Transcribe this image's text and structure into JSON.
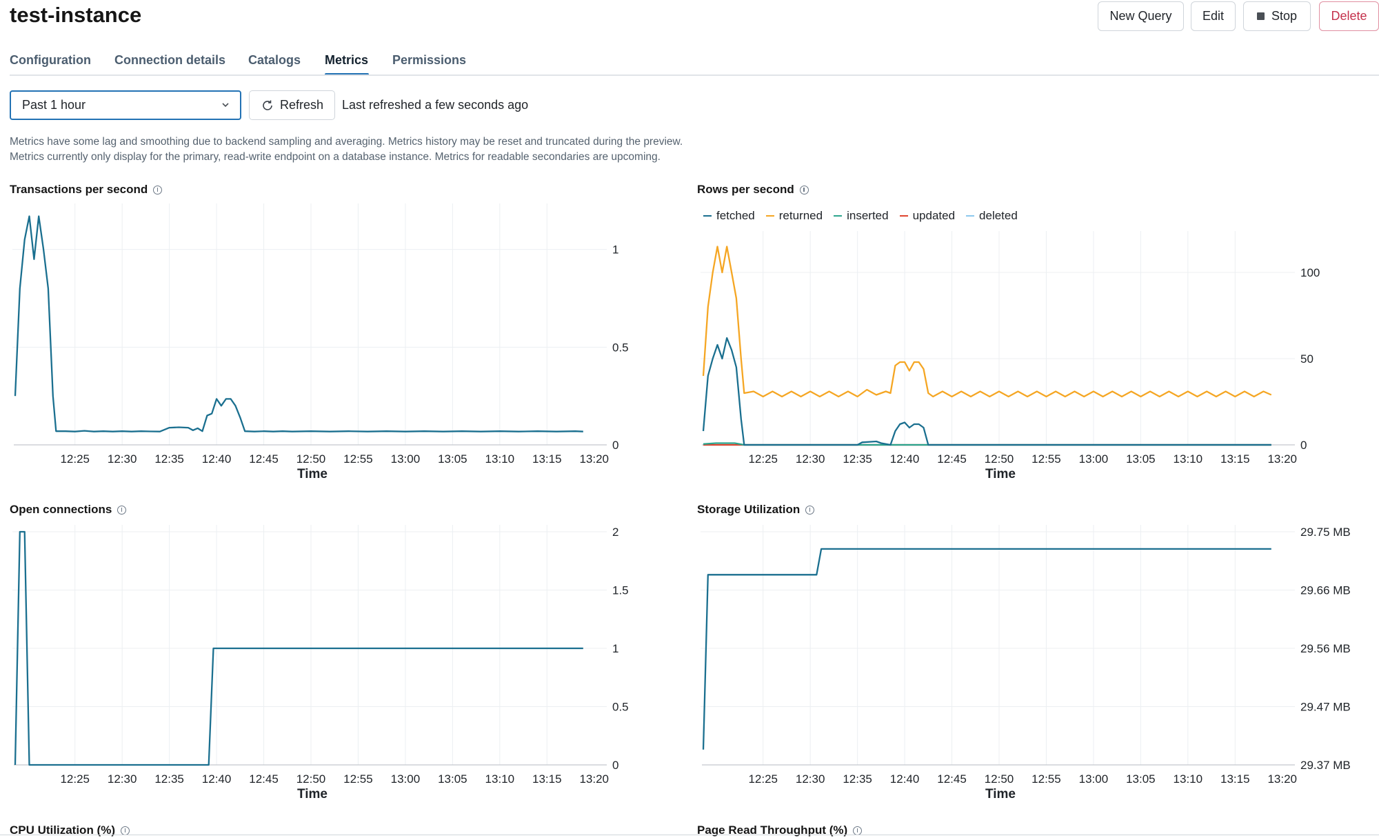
{
  "instance_title": "test-instance",
  "actions": {
    "new_query": "New Query",
    "edit": "Edit",
    "stop": "Stop",
    "delete": "Delete"
  },
  "tabs": [
    {
      "label": "Configuration",
      "active": false
    },
    {
      "label": "Connection details",
      "active": false
    },
    {
      "label": "Catalogs",
      "active": false
    },
    {
      "label": "Metrics",
      "active": true
    },
    {
      "label": "Permissions",
      "active": false
    }
  ],
  "time_range": {
    "selected": "Past 1 hour"
  },
  "refresh": {
    "label": "Refresh",
    "status": "Last refreshed a few seconds ago"
  },
  "notices": [
    "Metrics have some lag and smoothing due to backend sampling and averaging. Metrics history may be reset and truncated during the preview.",
    "Metrics currently only display for the primary, read-write endpoint on a database instance. Metrics for readable secondaries are upcoming."
  ],
  "colors": {
    "accent": "#2272b4",
    "fetched": "#1a6f8f",
    "returned": "#f5a623",
    "inserted": "#2ca58d",
    "updated": "#e0442e",
    "deleted": "#8cc8ee",
    "danger": "#c4314b"
  },
  "chart_data": [
    {
      "id": "tps",
      "type": "line",
      "title": "Transactions per second",
      "xlabel": "Time",
      "ylabel": "",
      "x_ticks": [
        "12:25",
        "12:30",
        "12:35",
        "12:40",
        "12:45",
        "12:50",
        "12:55",
        "13:00",
        "13:05",
        "13:10",
        "13:15",
        "13:20"
      ],
      "y_ticks": [
        "0",
        "0.5",
        "1"
      ],
      "ylim": [
        0,
        1.2
      ],
      "grid": true,
      "series": [
        {
          "color": "#1a6f8f",
          "points": [
            [
              "12:18:40",
              0.25
            ],
            [
              "12:19:10",
              0.8
            ],
            [
              "12:19:40",
              1.05
            ],
            [
              "12:20:10",
              1.17
            ],
            [
              "12:20:40",
              0.95
            ],
            [
              "12:21:10",
              1.17
            ],
            [
              "12:21:40",
              1.0
            ],
            [
              "12:22:10",
              0.8
            ],
            [
              "12:22:40",
              0.25
            ],
            [
              "12:23:00",
              0.07
            ],
            [
              "12:24:00",
              0.07
            ],
            [
              "12:25:00",
              0.068
            ],
            [
              "12:26:00",
              0.072
            ],
            [
              "12:27:00",
              0.068
            ],
            [
              "12:28:00",
              0.07
            ],
            [
              "12:29:00",
              0.068
            ],
            [
              "12:30:00",
              0.07
            ],
            [
              "12:31:00",
              0.068
            ],
            [
              "12:32:00",
              0.07
            ],
            [
              "12:33:00",
              0.069
            ],
            [
              "12:34:00",
              0.068
            ],
            [
              "12:35:00",
              0.088
            ],
            [
              "12:36:00",
              0.09
            ],
            [
              "12:37:00",
              0.088
            ],
            [
              "12:37:30",
              0.075
            ],
            [
              "12:38:00",
              0.085
            ],
            [
              "12:38:30",
              0.07
            ],
            [
              "12:39:00",
              0.15
            ],
            [
              "12:39:30",
              0.16
            ],
            [
              "12:40:00",
              0.235
            ],
            [
              "12:40:30",
              0.2
            ],
            [
              "12:41:00",
              0.235
            ],
            [
              "12:41:30",
              0.235
            ],
            [
              "12:42:00",
              0.2
            ],
            [
              "12:42:30",
              0.14
            ],
            [
              "12:43:00",
              0.07
            ],
            [
              "12:44:00",
              0.068
            ],
            [
              "12:45:00",
              0.07
            ],
            [
              "12:46:00",
              0.068
            ],
            [
              "12:47:00",
              0.07
            ],
            [
              "12:48:00",
              0.068
            ],
            [
              "12:50:00",
              0.07
            ],
            [
              "12:52:00",
              0.068
            ],
            [
              "12:54:00",
              0.07
            ],
            [
              "12:56:00",
              0.068
            ],
            [
              "12:58:00",
              0.07
            ],
            [
              "13:00:00",
              0.068
            ],
            [
              "13:02:00",
              0.07
            ],
            [
              "13:04:00",
              0.068
            ],
            [
              "13:06:00",
              0.07
            ],
            [
              "13:08:00",
              0.068
            ],
            [
              "13:10:00",
              0.07
            ],
            [
              "13:12:00",
              0.068
            ],
            [
              "13:14:00",
              0.07
            ],
            [
              "13:16:00",
              0.068
            ],
            [
              "13:18:00",
              0.07
            ],
            [
              "13:18:50",
              0.068
            ]
          ]
        }
      ]
    },
    {
      "id": "rows",
      "type": "line",
      "title": "Rows per second",
      "xlabel": "Time",
      "ylabel": "",
      "legend_position": "top-left",
      "x_ticks": [
        "12:25",
        "12:30",
        "12:35",
        "12:40",
        "12:45",
        "12:50",
        "12:55",
        "13:00",
        "13:05",
        "13:10",
        "13:15",
        "13:20"
      ],
      "y_ticks": [
        "0",
        "50",
        "100"
      ],
      "ylim": [
        0,
        120
      ],
      "grid": true,
      "series": [
        {
          "name": "fetched",
          "color": "#1a6f8f",
          "points": [
            [
              "12:18:40",
              8
            ],
            [
              "12:19:10",
              40
            ],
            [
              "12:19:40",
              50
            ],
            [
              "12:20:10",
              58
            ],
            [
              "12:20:40",
              50
            ],
            [
              "12:21:10",
              62
            ],
            [
              "12:21:40",
              55
            ],
            [
              "12:22:10",
              45
            ],
            [
              "12:22:40",
              15
            ],
            [
              "12:23:00",
              0
            ],
            [
              "12:35:00",
              0
            ],
            [
              "12:35:30",
              1.5
            ],
            [
              "12:37:00",
              2
            ],
            [
              "12:37:30",
              1
            ],
            [
              "12:38:00",
              0.5
            ],
            [
              "12:38:30",
              0
            ],
            [
              "12:39:00",
              8
            ],
            [
              "12:39:30",
              12
            ],
            [
              "12:40:00",
              13
            ],
            [
              "12:40:30",
              10
            ],
            [
              "12:41:00",
              12
            ],
            [
              "12:41:30",
              12
            ],
            [
              "12:42:00",
              10
            ],
            [
              "12:42:30",
              0
            ],
            [
              "13:18:50",
              0
            ]
          ]
        },
        {
          "name": "returned",
          "color": "#f5a623",
          "points": [
            [
              "12:18:40",
              40
            ],
            [
              "12:19:10",
              80
            ],
            [
              "12:19:40",
              100
            ],
            [
              "12:20:10",
              115
            ],
            [
              "12:20:40",
              100
            ],
            [
              "12:21:10",
              115
            ],
            [
              "12:21:40",
              100
            ],
            [
              "12:22:10",
              85
            ],
            [
              "12:22:40",
              50
            ],
            [
              "12:23:00",
              30
            ],
            [
              "12:24:00",
              31
            ],
            [
              "12:25:00",
              28
            ],
            [
              "12:26:00",
              31
            ],
            [
              "12:27:00",
              28
            ],
            [
              "12:28:00",
              31
            ],
            [
              "12:29:00",
              28
            ],
            [
              "12:30:00",
              31
            ],
            [
              "12:31:00",
              28
            ],
            [
              "12:32:00",
              31
            ],
            [
              "12:33:00",
              28
            ],
            [
              "12:34:00",
              31
            ],
            [
              "12:35:00",
              28
            ],
            [
              "12:36:00",
              32
            ],
            [
              "12:37:00",
              29
            ],
            [
              "12:38:00",
              31
            ],
            [
              "12:38:30",
              30
            ],
            [
              "12:39:00",
              46
            ],
            [
              "12:39:30",
              48
            ],
            [
              "12:40:00",
              48
            ],
            [
              "12:40:30",
              43
            ],
            [
              "12:41:00",
              48
            ],
            [
              "12:41:30",
              48
            ],
            [
              "12:42:00",
              44
            ],
            [
              "12:42:30",
              30
            ],
            [
              "12:43:00",
              28
            ],
            [
              "12:44:00",
              31
            ],
            [
              "12:45:00",
              28
            ],
            [
              "12:46:00",
              31
            ],
            [
              "12:47:00",
              28
            ],
            [
              "12:48:00",
              31
            ],
            [
              "12:49:00",
              28
            ],
            [
              "12:50:00",
              31
            ],
            [
              "12:51:00",
              28
            ],
            [
              "12:52:00",
              31
            ],
            [
              "12:53:00",
              28
            ],
            [
              "12:54:00",
              31
            ],
            [
              "12:55:00",
              28
            ],
            [
              "12:56:00",
              31
            ],
            [
              "12:57:00",
              28
            ],
            [
              "12:58:00",
              31
            ],
            [
              "12:59:00",
              28
            ],
            [
              "13:00:00",
              31
            ],
            [
              "13:01:00",
              28
            ],
            [
              "13:02:00",
              31
            ],
            [
              "13:03:00",
              28
            ],
            [
              "13:04:00",
              31
            ],
            [
              "13:05:00",
              28
            ],
            [
              "13:06:00",
              31
            ],
            [
              "13:07:00",
              28
            ],
            [
              "13:08:00",
              31
            ],
            [
              "13:09:00",
              28
            ],
            [
              "13:10:00",
              31
            ],
            [
              "13:11:00",
              28
            ],
            [
              "13:12:00",
              31
            ],
            [
              "13:13:00",
              28
            ],
            [
              "13:14:00",
              31
            ],
            [
              "13:15:00",
              28
            ],
            [
              "13:16:00",
              31
            ],
            [
              "13:17:00",
              28
            ],
            [
              "13:18:00",
              31
            ],
            [
              "13:18:50",
              29
            ]
          ]
        },
        {
          "name": "inserted",
          "color": "#2ca58d",
          "points": [
            [
              "12:18:40",
              0.5
            ],
            [
              "12:20:00",
              1
            ],
            [
              "12:22:00",
              1
            ],
            [
              "12:23:00",
              0
            ],
            [
              "13:18:50",
              0
            ]
          ]
        },
        {
          "name": "updated",
          "color": "#e0442e",
          "points": [
            [
              "12:18:40",
              0
            ],
            [
              "13:18:50",
              0
            ]
          ]
        },
        {
          "name": "deleted",
          "color": "#8cc8ee",
          "points": [
            [
              "12:18:40",
              0
            ],
            [
              "13:18:50",
              0
            ]
          ]
        }
      ]
    },
    {
      "id": "conns",
      "type": "line",
      "title": "Open connections",
      "xlabel": "Time",
      "ylabel": "",
      "x_ticks": [
        "12:25",
        "12:30",
        "12:35",
        "12:40",
        "12:45",
        "12:50",
        "12:55",
        "13:00",
        "13:05",
        "13:10",
        "13:15",
        "13:20"
      ],
      "y_ticks": [
        "0",
        "0.5",
        "1",
        "1.5",
        "2"
      ],
      "ylim": [
        0,
        2
      ],
      "grid": true,
      "series": [
        {
          "color": "#1a6f8f",
          "points": [
            [
              "12:18:40",
              0
            ],
            [
              "12:19:10",
              2
            ],
            [
              "12:19:40",
              2
            ],
            [
              "12:20:10",
              0
            ],
            [
              "12:39:10",
              0
            ],
            [
              "12:39:40",
              1
            ],
            [
              "13:18:50",
              1
            ]
          ]
        }
      ]
    },
    {
      "id": "storage",
      "type": "line",
      "title": "Storage Utilization",
      "xlabel": "Time",
      "ylabel": "",
      "x_ticks": [
        "12:25",
        "12:30",
        "12:35",
        "12:40",
        "12:45",
        "12:50",
        "12:55",
        "13:00",
        "13:05",
        "13:10",
        "13:15",
        "13:20"
      ],
      "y_ticks": [
        "29.37 MB",
        "29.47 MB",
        "29.56 MB",
        "29.66 MB",
        "29.75 MB"
      ],
      "ylim": [
        29.37,
        29.75
      ],
      "grid": true,
      "series": [
        {
          "color": "#1a6f8f",
          "points": [
            [
              "12:18:40",
              29.395
            ],
            [
              "12:19:10",
              29.68
            ],
            [
              "12:30:40",
              29.68
            ],
            [
              "12:31:10",
              29.722
            ],
            [
              "13:18:50",
              29.722
            ]
          ]
        }
      ]
    }
  ],
  "cut_off_sections": [
    {
      "title": "CPU Utilization (%)"
    },
    {
      "title": "Page Read Throughput (%)"
    }
  ]
}
